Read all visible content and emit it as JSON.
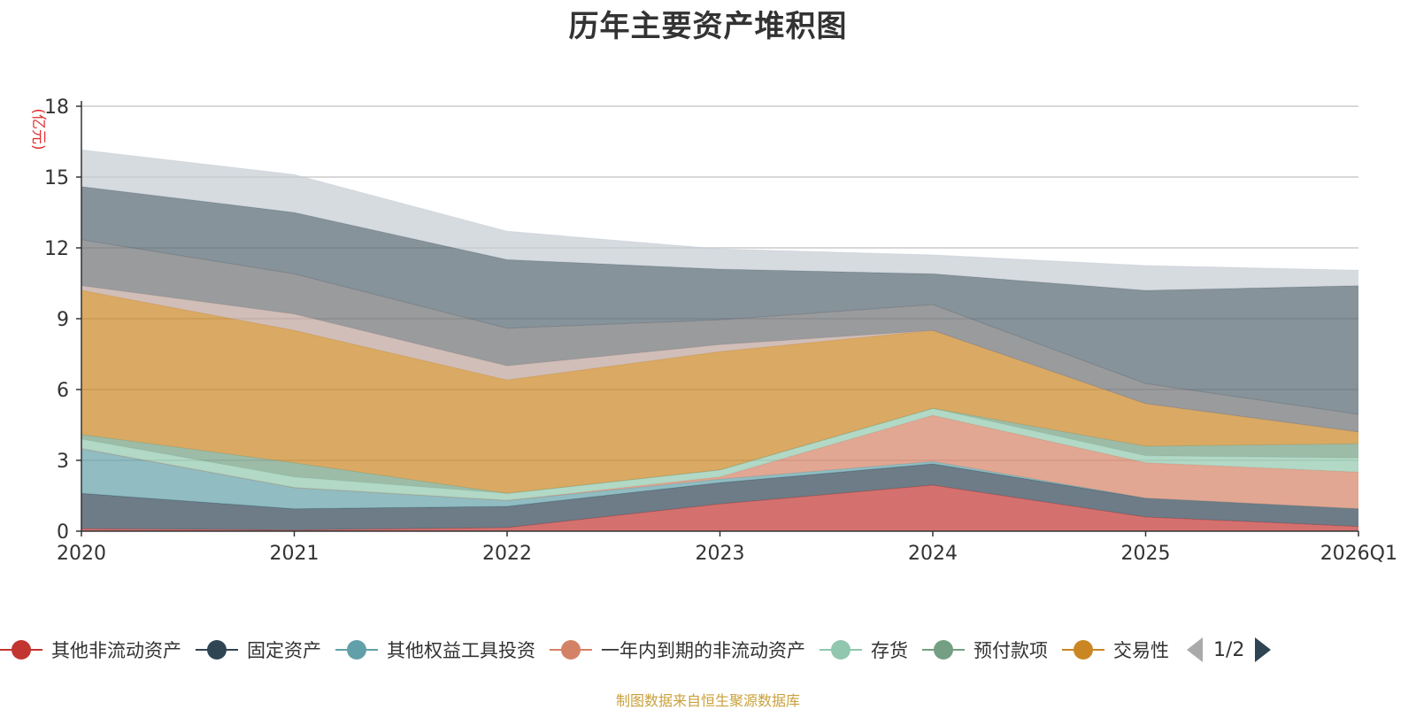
{
  "title": "历年主要资产堆积图",
  "source_note": "制图数据来自恒生聚源数据库",
  "legend_pager": "1/2",
  "chart_data": {
    "type": "area",
    "stacked": true,
    "title": "历年主要资产堆积图",
    "ylabel": "(亿元)",
    "ylim": [
      0,
      18
    ],
    "yticks": [
      0,
      3,
      6,
      9,
      12,
      15,
      18
    ],
    "grid": true,
    "legend_position": "bottom",
    "categories": [
      "2020",
      "2021",
      "2022",
      "2023",
      "2024",
      "2025",
      "2026Q1"
    ],
    "series": [
      {
        "name": "其他非流动资产",
        "color": "#c23531",
        "values": [
          0.1,
          0.05,
          0.15,
          1.15,
          1.95,
          0.6,
          0.2
        ]
      },
      {
        "name": "固定资产",
        "color": "#2f4554",
        "values": [
          1.5,
          0.9,
          0.9,
          0.9,
          0.9,
          0.8,
          0.75
        ]
      },
      {
        "name": "其他权益工具投资",
        "color": "#61a0a8",
        "values": [
          1.9,
          0.9,
          0.25,
          0.15,
          0.1,
          0.0,
          0.0
        ]
      },
      {
        "name": "一年内到期的非流动资产",
        "color": "#d48265",
        "values": [
          0.0,
          0.0,
          0.0,
          0.1,
          1.95,
          1.5,
          1.55
        ]
      },
      {
        "name": "存货",
        "color": "#91c7ae",
        "values": [
          0.4,
          0.45,
          0.3,
          0.3,
          0.3,
          0.3,
          0.6
        ]
      },
      {
        "name": "预付款项",
        "color": "#749f83",
        "values": [
          0.2,
          0.6,
          0.0,
          0.0,
          0.0,
          0.4,
          0.6
        ]
      },
      {
        "name": "交易性",
        "color": "#ca8622",
        "values": [
          6.1,
          5.6,
          4.8,
          5.0,
          3.3,
          1.8,
          0.5
        ]
      },
      {
        "name": "",
        "color": "#bda29a",
        "values": [
          0.2,
          0.7,
          0.6,
          0.3,
          0.0,
          0.0,
          0.0
        ]
      },
      {
        "name": "",
        "color": "#6e7074",
        "values": [
          1.95,
          1.7,
          1.6,
          1.05,
          1.1,
          0.85,
          0.75
        ]
      },
      {
        "name": "",
        "color": "#546570",
        "values": [
          2.25,
          2.6,
          2.9,
          2.15,
          1.3,
          3.95,
          5.45
        ]
      },
      {
        "name": "",
        "color": "#c4ccd3",
        "values": [
          1.55,
          1.6,
          1.2,
          0.85,
          0.8,
          1.05,
          0.65
        ]
      }
    ]
  }
}
